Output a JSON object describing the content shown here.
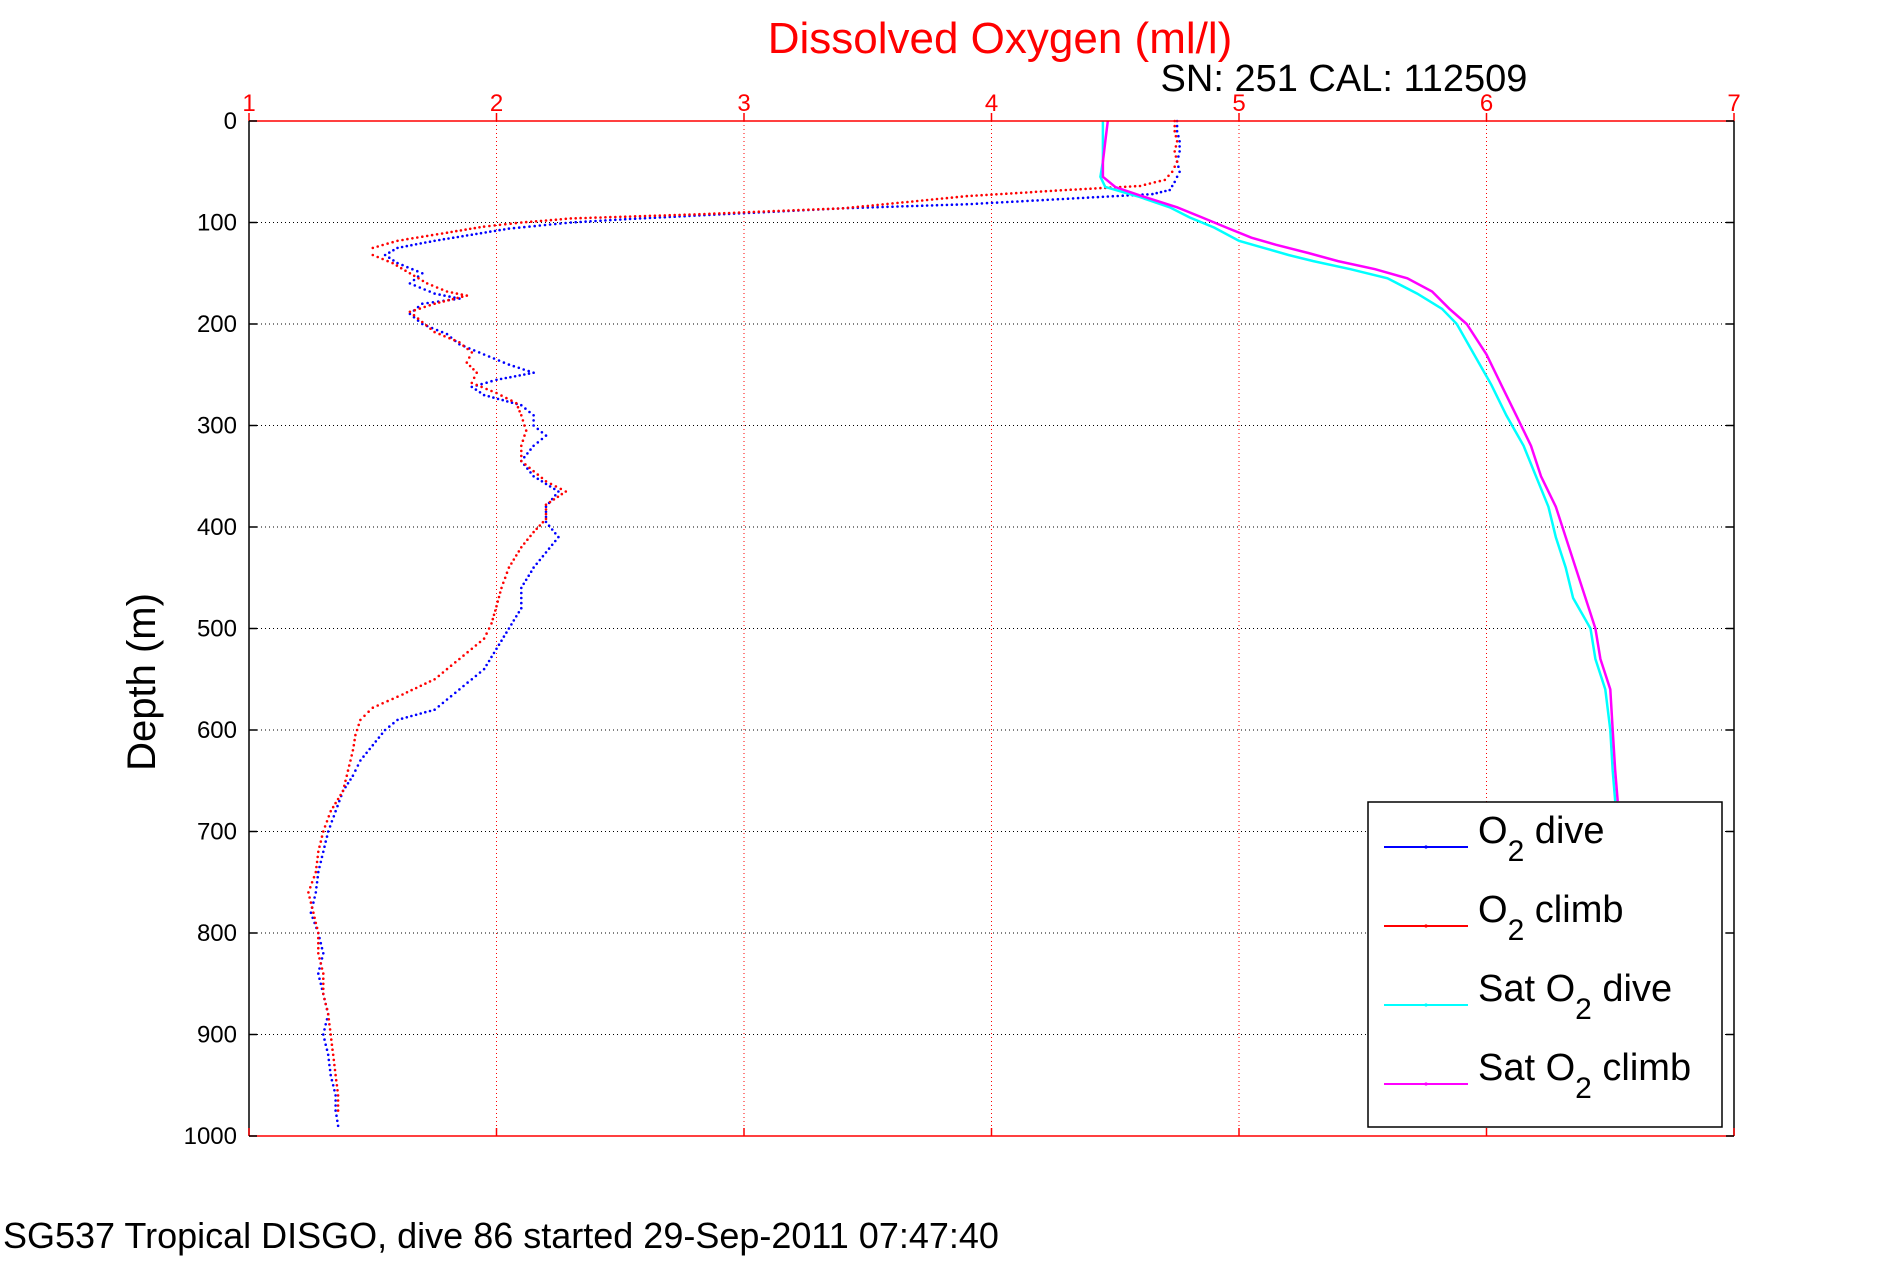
{
  "chart_data": {
    "type": "line",
    "title": "Dissolved Oxygen (ml/l)",
    "subtitle": "SN: 251  CAL: 112509",
    "ylabel": "Depth (m)",
    "xlabel": "",
    "footer": "SG537 Tropical DISGO, dive 86 started 29-Sep-2011 07:47:40",
    "xlim": [
      1,
      7
    ],
    "ylim": [
      0,
      1000
    ],
    "y_reversed": true,
    "x_axis_position": "top",
    "grid": true,
    "x_ticks": [
      1,
      2,
      3,
      4,
      5,
      6,
      7
    ],
    "x_tick_labels": [
      "1",
      "2",
      "3",
      "4",
      "5",
      "6",
      "7"
    ],
    "y_ticks": [
      0,
      100,
      200,
      300,
      400,
      500,
      600,
      700,
      800,
      900,
      1000
    ],
    "y_tick_labels": [
      "0",
      "100",
      "200",
      "300",
      "400",
      "500",
      "600",
      "700",
      "800",
      "900",
      "1000"
    ],
    "legend_position": "bottom-right",
    "colors": {
      "axis_x": "#ff0000",
      "axis_y": "#000000",
      "title": "#ff0000"
    },
    "series": [
      {
        "name": "O2 dive",
        "legend_main": "O",
        "legend_sub": "2",
        "legend_rest": " dive",
        "color": "#0000ff",
        "style": "dots",
        "points": [
          [
            4.75,
            0
          ],
          [
            4.75,
            10
          ],
          [
            4.76,
            20
          ],
          [
            4.76,
            30
          ],
          [
            4.75,
            40
          ],
          [
            4.76,
            50
          ],
          [
            4.74,
            60
          ],
          [
            4.72,
            68
          ],
          [
            4.65,
            72
          ],
          [
            4.35,
            76
          ],
          [
            3.9,
            82
          ],
          [
            3.4,
            86
          ],
          [
            2.9,
            92
          ],
          [
            2.5,
            97
          ],
          [
            2.3,
            100
          ],
          [
            2.05,
            106
          ],
          [
            1.9,
            112
          ],
          [
            1.75,
            118
          ],
          [
            1.6,
            125
          ],
          [
            1.55,
            132
          ],
          [
            1.6,
            140
          ],
          [
            1.7,
            150
          ],
          [
            1.65,
            160
          ],
          [
            1.75,
            170
          ],
          [
            1.85,
            175
          ],
          [
            1.7,
            180
          ],
          [
            1.65,
            190
          ],
          [
            1.7,
            200
          ],
          [
            1.8,
            210
          ],
          [
            1.85,
            220
          ],
          [
            1.95,
            230
          ],
          [
            2.05,
            240
          ],
          [
            2.15,
            248
          ],
          [
            2.0,
            255
          ],
          [
            1.9,
            262
          ],
          [
            1.95,
            270
          ],
          [
            2.1,
            280
          ],
          [
            2.15,
            290
          ],
          [
            2.15,
            300
          ],
          [
            2.2,
            310
          ],
          [
            2.15,
            320
          ],
          [
            2.1,
            335
          ],
          [
            2.15,
            350
          ],
          [
            2.25,
            365
          ],
          [
            2.2,
            380
          ],
          [
            2.2,
            395
          ],
          [
            2.25,
            410
          ],
          [
            2.2,
            425
          ],
          [
            2.15,
            440
          ],
          [
            2.1,
            460
          ],
          [
            2.1,
            480
          ],
          [
            2.05,
            500
          ],
          [
            2.0,
            520
          ],
          [
            1.95,
            540
          ],
          [
            1.85,
            560
          ],
          [
            1.75,
            580
          ],
          [
            1.6,
            590
          ],
          [
            1.55,
            600
          ],
          [
            1.5,
            615
          ],
          [
            1.45,
            630
          ],
          [
            1.42,
            645
          ],
          [
            1.38,
            660
          ],
          [
            1.35,
            680
          ],
          [
            1.32,
            700
          ],
          [
            1.3,
            720
          ],
          [
            1.28,
            740
          ],
          [
            1.27,
            760
          ],
          [
            1.25,
            780
          ],
          [
            1.28,
            800
          ],
          [
            1.3,
            820
          ],
          [
            1.28,
            840
          ],
          [
            1.3,
            860
          ],
          [
            1.32,
            880
          ],
          [
            1.3,
            900
          ],
          [
            1.32,
            920
          ],
          [
            1.33,
            940
          ],
          [
            1.35,
            960
          ],
          [
            1.35,
            975
          ],
          [
            1.36,
            990
          ]
        ]
      },
      {
        "name": "O2 climb",
        "legend_main": "O",
        "legend_sub": "2",
        "legend_rest": " climb",
        "color": "#ff0000",
        "style": "dots",
        "points": [
          [
            4.74,
            0
          ],
          [
            4.74,
            10
          ],
          [
            4.75,
            20
          ],
          [
            4.74,
            30
          ],
          [
            4.75,
            40
          ],
          [
            4.73,
            50
          ],
          [
            4.7,
            58
          ],
          [
            4.6,
            64
          ],
          [
            4.3,
            68
          ],
          [
            3.9,
            74
          ],
          [
            3.4,
            86
          ],
          [
            2.8,
            92
          ],
          [
            2.3,
            96
          ],
          [
            2.1,
            100
          ],
          [
            1.95,
            104
          ],
          [
            1.8,
            110
          ],
          [
            1.6,
            118
          ],
          [
            1.5,
            125
          ],
          [
            1.5,
            132
          ],
          [
            1.58,
            140
          ],
          [
            1.65,
            150
          ],
          [
            1.72,
            160
          ],
          [
            1.8,
            168
          ],
          [
            1.88,
            172
          ],
          [
            1.75,
            180
          ],
          [
            1.65,
            188
          ],
          [
            1.7,
            198
          ],
          [
            1.75,
            208
          ],
          [
            1.85,
            218
          ],
          [
            1.9,
            228
          ],
          [
            1.88,
            238
          ],
          [
            1.92,
            248
          ],
          [
            1.9,
            258
          ],
          [
            2.0,
            268
          ],
          [
            2.08,
            278
          ],
          [
            2.1,
            290
          ],
          [
            2.12,
            305
          ],
          [
            2.1,
            320
          ],
          [
            2.1,
            335
          ],
          [
            2.15,
            345
          ],
          [
            2.2,
            355
          ],
          [
            2.28,
            365
          ],
          [
            2.2,
            378
          ],
          [
            2.2,
            392
          ],
          [
            2.15,
            405
          ],
          [
            2.1,
            420
          ],
          [
            2.05,
            440
          ],
          [
            2.02,
            460
          ],
          [
            2.0,
            478
          ],
          [
            1.98,
            495
          ],
          [
            1.95,
            510
          ],
          [
            1.85,
            530
          ],
          [
            1.75,
            550
          ],
          [
            1.62,
            565
          ],
          [
            1.5,
            578
          ],
          [
            1.45,
            590
          ],
          [
            1.43,
            605
          ],
          [
            1.42,
            620
          ],
          [
            1.4,
            640
          ],
          [
            1.38,
            660
          ],
          [
            1.33,
            680
          ],
          [
            1.3,
            700
          ],
          [
            1.28,
            720
          ],
          [
            1.27,
            740
          ],
          [
            1.24,
            760
          ],
          [
            1.26,
            780
          ],
          [
            1.28,
            800
          ],
          [
            1.28,
            820
          ],
          [
            1.3,
            840
          ],
          [
            1.3,
            860
          ],
          [
            1.32,
            880
          ],
          [
            1.33,
            900
          ],
          [
            1.34,
            920
          ],
          [
            1.35,
            940
          ],
          [
            1.36,
            960
          ],
          [
            1.36,
            975
          ]
        ]
      },
      {
        "name": "Sat O2 dive",
        "legend_main": "Sat O",
        "legend_sub": "2",
        "legend_rest": " dive",
        "color": "#00ffff",
        "style": "line",
        "points": [
          [
            4.45,
            0
          ],
          [
            4.45,
            20
          ],
          [
            4.45,
            40
          ],
          [
            4.44,
            55
          ],
          [
            4.46,
            65
          ],
          [
            4.6,
            75
          ],
          [
            4.72,
            85
          ],
          [
            4.8,
            95
          ],
          [
            4.9,
            105
          ],
          [
            5.0,
            118
          ],
          [
            5.1,
            125
          ],
          [
            5.2,
            132
          ],
          [
            5.3,
            138
          ],
          [
            5.45,
            146
          ],
          [
            5.6,
            155
          ],
          [
            5.72,
            170
          ],
          [
            5.82,
            185
          ],
          [
            5.88,
            200
          ],
          [
            5.95,
            230
          ],
          [
            6.02,
            260
          ],
          [
            6.08,
            290
          ],
          [
            6.15,
            320
          ],
          [
            6.2,
            350
          ],
          [
            6.25,
            380
          ],
          [
            6.28,
            410
          ],
          [
            6.32,
            440
          ],
          [
            6.35,
            470
          ],
          [
            6.42,
            500
          ],
          [
            6.44,
            530
          ],
          [
            6.48,
            560
          ],
          [
            6.5,
            600
          ],
          [
            6.51,
            640
          ],
          [
            6.52,
            670
          ]
        ]
      },
      {
        "name": "Sat O2 climb",
        "legend_main": "Sat O",
        "legend_sub": "2",
        "legend_rest": " climb",
        "color": "#ff00ff",
        "style": "line",
        "points": [
          [
            4.47,
            0
          ],
          [
            4.46,
            20
          ],
          [
            4.45,
            40
          ],
          [
            4.45,
            55
          ],
          [
            4.5,
            65
          ],
          [
            4.62,
            75
          ],
          [
            4.75,
            85
          ],
          [
            4.85,
            95
          ],
          [
            4.95,
            105
          ],
          [
            5.05,
            115
          ],
          [
            5.15,
            122
          ],
          [
            5.28,
            130
          ],
          [
            5.4,
            138
          ],
          [
            5.55,
            146
          ],
          [
            5.68,
            155
          ],
          [
            5.78,
            168
          ],
          [
            5.85,
            185
          ],
          [
            5.92,
            200
          ],
          [
            6.0,
            230
          ],
          [
            6.06,
            260
          ],
          [
            6.12,
            290
          ],
          [
            6.18,
            320
          ],
          [
            6.22,
            350
          ],
          [
            6.28,
            380
          ],
          [
            6.32,
            410
          ],
          [
            6.36,
            440
          ],
          [
            6.4,
            470
          ],
          [
            6.44,
            500
          ],
          [
            6.46,
            530
          ],
          [
            6.5,
            560
          ],
          [
            6.51,
            600
          ],
          [
            6.52,
            640
          ],
          [
            6.53,
            670
          ]
        ]
      }
    ]
  }
}
